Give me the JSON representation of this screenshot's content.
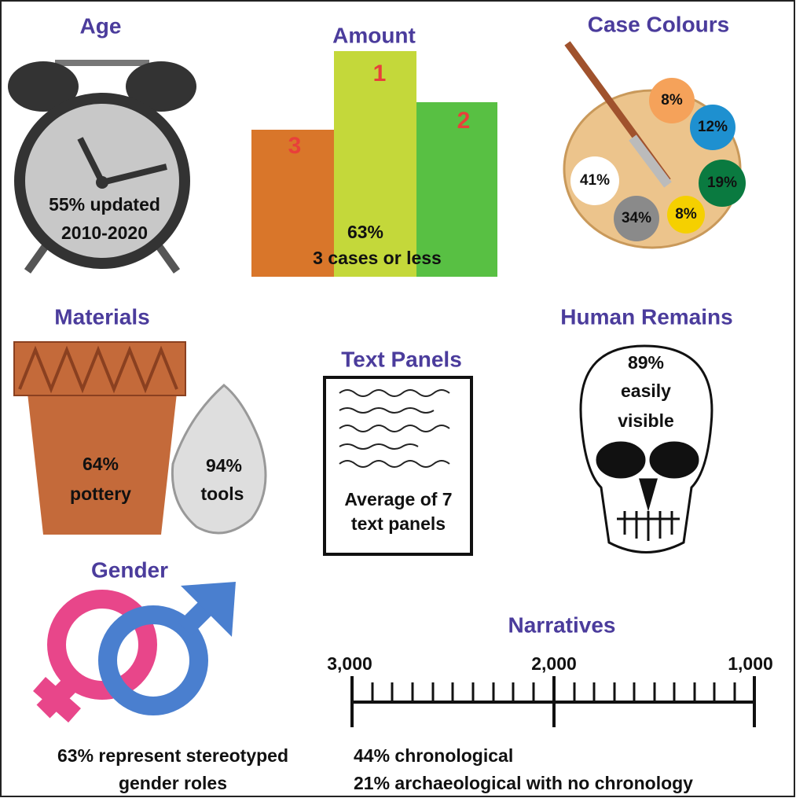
{
  "age": {
    "title": "Age",
    "lines": [
      "55% updated",
      "2010-2020"
    ]
  },
  "amount": {
    "title": "Amount",
    "ranks": [
      "3",
      "1",
      "2"
    ],
    "lines": [
      "63%",
      "3 cases or less"
    ]
  },
  "case_colours": {
    "title": "Case Colours",
    "labels": [
      "8%",
      "12%",
      "41%",
      "19%",
      "34%",
      "8%"
    ]
  },
  "materials": {
    "title": "Materials",
    "pottery": [
      "64%",
      "pottery"
    ],
    "tools": [
      "94%",
      "tools"
    ]
  },
  "text_panels": {
    "title": "Text Panels",
    "lines": [
      "Average of 7",
      "text panels"
    ]
  },
  "human_remains": {
    "title": "Human Remains",
    "lines": [
      "89%",
      "easily",
      "visible"
    ]
  },
  "gender": {
    "title": "Gender",
    "lines": [
      "63% represent stereotyped",
      "gender roles"
    ]
  },
  "narratives": {
    "title": "Narratives",
    "scale": [
      "3,000",
      "2,000",
      "1,000"
    ],
    "lines": [
      "44% chronological",
      "21% archaeological with no chronology"
    ]
  }
}
